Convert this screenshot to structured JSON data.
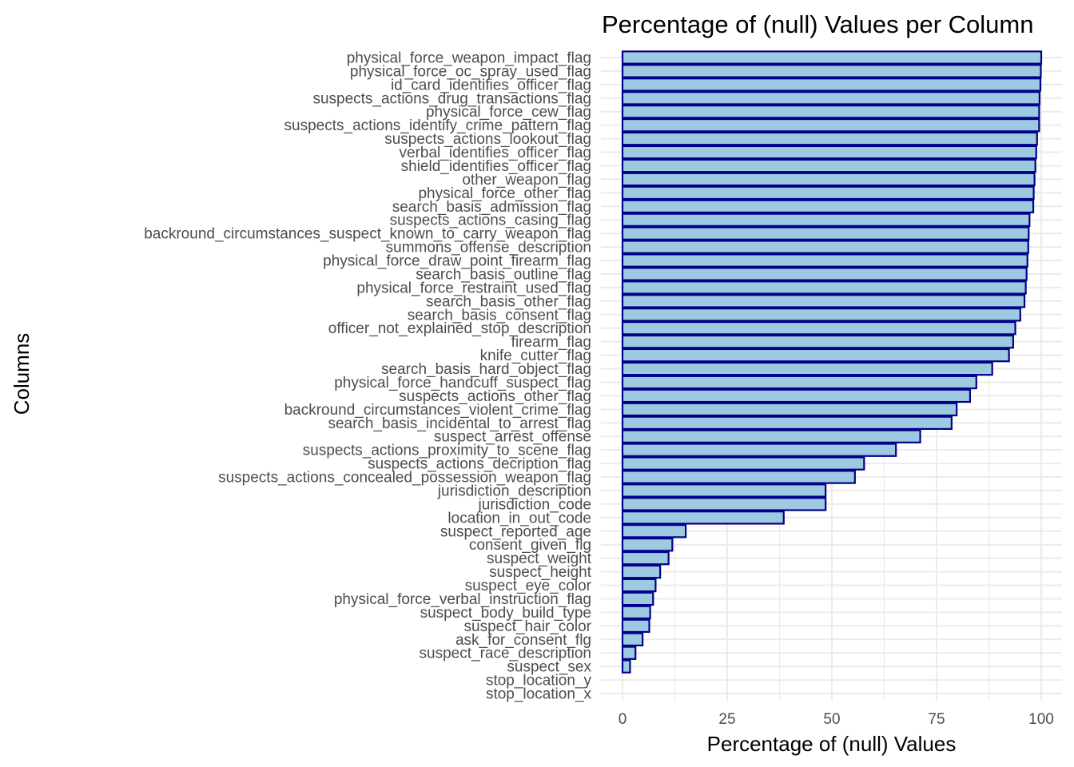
{
  "chart_data": {
    "type": "bar",
    "orientation": "horizontal",
    "title": "Percentage of (null) Values per Column",
    "xlabel": "Percentage of (null) Values",
    "ylabel": "Columns",
    "xlim": [
      0,
      100
    ],
    "xticks": [
      0,
      25,
      50,
      75,
      100
    ],
    "grid": true,
    "legend": "none",
    "colors": {
      "fill": "#9ecae1",
      "stroke": "#00008b",
      "grid": "#ebebeb"
    },
    "categories": [
      "physical_force_weapon_impact_flag",
      "physical_force_oc_spray_used_flag",
      "id_card_identifies_officer_flag",
      "suspects_actions_drug_transactions_flag",
      "physical_force_cew_flag",
      "suspects_actions_identify_crime_pattern_flag",
      "suspects_actions_lookout_flag",
      "verbal_identifies_officer_flag",
      "shield_identifies_officer_flag",
      "other_weapon_flag",
      "physical_force_other_flag",
      "search_basis_admission_flag",
      "suspects_actions_casing_flag",
      "backround_circumstances_suspect_known_to_carry_weapon_flag",
      "summons_offense_description",
      "physical_force_draw_point_firearm_flag",
      "search_basis_outline_flag",
      "physical_force_restraint_used_flag",
      "search_basis_other_flag",
      "search_basis_consent_flag",
      "officer_not_explained_stop_description",
      "firearm_flag",
      "knife_cutter_flag",
      "search_basis_hard_object_flag",
      "physical_force_handcuff_suspect_flag",
      "suspects_actions_other_flag",
      "backround_circumstances_violent_crime_flag",
      "search_basis_incidental_to_arrest_flag",
      "suspect_arrest_offense",
      "suspects_actions_proximity_to_scene_flag",
      "suspects_actions_decription_flag",
      "suspects_actions_concealed_possession_weapon_flag",
      "jurisdiction_description",
      "jurisdiction_code",
      "location_in_out_code",
      "suspect_reported_age",
      "consent_given_flg",
      "suspect_weight",
      "suspect_height",
      "suspect_eye_color",
      "physical_force_verbal_instruction_flag",
      "suspect_body_build_type",
      "suspect_hair_color",
      "ask_for_consent_flg",
      "suspect_race_description",
      "suspect_sex",
      "stop_location_y",
      "stop_location_x"
    ],
    "values": [
      100.0,
      99.9,
      99.8,
      99.6,
      99.5,
      99.5,
      99.0,
      98.8,
      98.6,
      98.4,
      98.2,
      98.1,
      97.2,
      97.0,
      96.9,
      96.7,
      96.5,
      96.3,
      96.0,
      95.0,
      93.8,
      93.3,
      92.3,
      88.3,
      84.5,
      83.0,
      79.8,
      78.6,
      71.1,
      65.3,
      57.7,
      55.5,
      48.5,
      48.5,
      38.5,
      15.1,
      11.9,
      11.0,
      9.0,
      7.9,
      7.3,
      6.6,
      6.4,
      4.8,
      3.1,
      1.8,
      0.0,
      0.0
    ]
  }
}
